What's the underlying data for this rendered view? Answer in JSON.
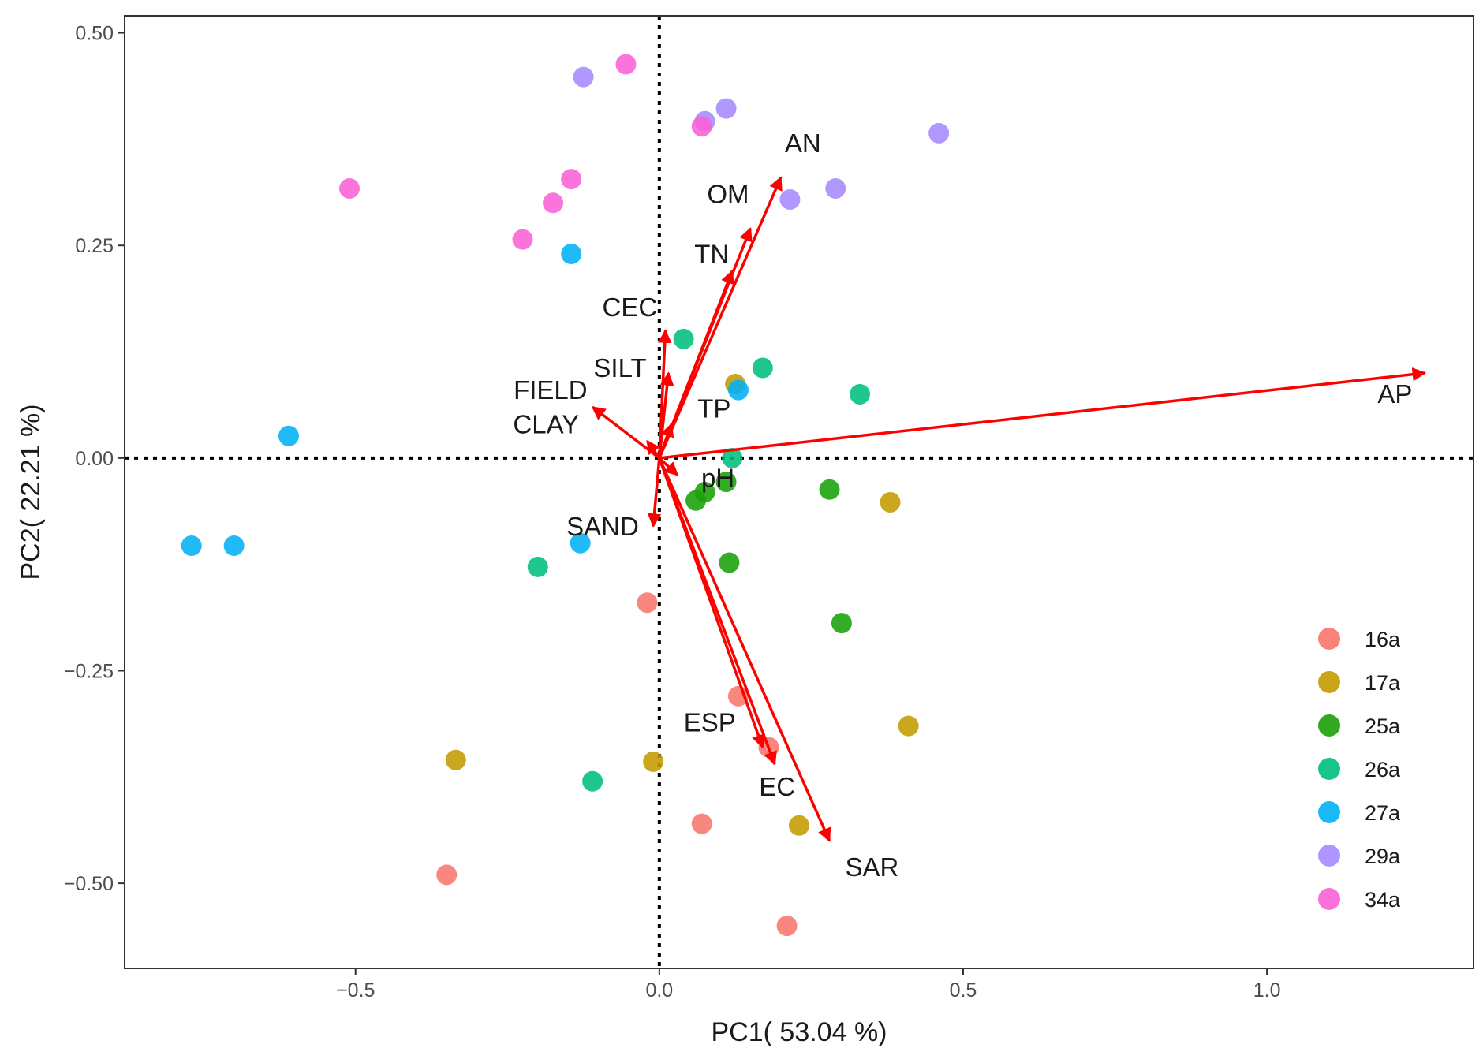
{
  "chart_data": {
    "type": "scatter",
    "subtype": "pca-biplot",
    "xlabel": "PC1( 53.04 %)",
    "ylabel": "PC2( 22.21 %)",
    "xlim": [
      -0.88,
      1.34
    ],
    "ylim": [
      -0.6,
      0.52
    ],
    "x_ticks": [
      {
        "value": -0.5,
        "label": "−0.5"
      },
      {
        "value": 0.0,
        "label": "0.0"
      },
      {
        "value": 0.5,
        "label": "0.5"
      },
      {
        "value": 1.0,
        "label": "1.0"
      }
    ],
    "y_ticks": [
      {
        "value": 0.5,
        "label": "0.50"
      },
      {
        "value": 0.25,
        "label": "0.25"
      },
      {
        "value": 0.0,
        "label": "0.00"
      },
      {
        "value": -0.25,
        "label": "−0.25"
      },
      {
        "value": -0.5,
        "label": "−0.50"
      }
    ],
    "reference_lines": {
      "x": 0,
      "y": 0,
      "style": "dotted"
    },
    "legend_position": "bottom-right",
    "series": [
      {
        "name": "16a",
        "color": "#F8766D",
        "points": [
          [
            -0.02,
            -0.17
          ],
          [
            0.13,
            -0.28
          ],
          [
            0.18,
            -0.34
          ],
          [
            0.07,
            -0.43
          ],
          [
            -0.35,
            -0.49
          ],
          [
            0.21,
            -0.55
          ]
        ]
      },
      {
        "name": "17a",
        "color": "#C49A00",
        "points": [
          [
            0.125,
            0.087
          ],
          [
            0.38,
            -0.052
          ],
          [
            0.41,
            -0.315
          ],
          [
            -0.335,
            -0.355
          ],
          [
            -0.01,
            -0.357
          ],
          [
            0.23,
            -0.432
          ]
        ]
      },
      {
        "name": "25a",
        "color": "#19A008",
        "points": [
          [
            0.06,
            -0.05
          ],
          [
            0.075,
            -0.04
          ],
          [
            0.11,
            -0.028
          ],
          [
            0.28,
            -0.037
          ],
          [
            0.115,
            -0.123
          ],
          [
            0.3,
            -0.194
          ]
        ]
      },
      {
        "name": "26a",
        "color": "#00BF7D",
        "points": [
          [
            0.04,
            0.14
          ],
          [
            0.17,
            0.106
          ],
          [
            0.33,
            0.075
          ],
          [
            0.12,
            0.0
          ],
          [
            -0.2,
            -0.128
          ],
          [
            -0.11,
            -0.38
          ]
        ]
      },
      {
        "name": "27a",
        "color": "#00B0F6",
        "points": [
          [
            -0.145,
            0.24
          ],
          [
            0.13,
            0.08
          ],
          [
            -0.61,
            0.026
          ],
          [
            -0.13,
            -0.1
          ],
          [
            -0.77,
            -0.103
          ],
          [
            -0.7,
            -0.103
          ]
        ]
      },
      {
        "name": "29a",
        "color": "#A58AFF",
        "points": [
          [
            -0.125,
            0.448
          ],
          [
            0.11,
            0.411
          ],
          [
            0.075,
            0.396
          ],
          [
            0.46,
            0.382
          ],
          [
            0.29,
            0.317
          ],
          [
            0.215,
            0.304
          ]
        ]
      },
      {
        "name": "34a",
        "color": "#FB61D7",
        "points": [
          [
            -0.055,
            0.463
          ],
          [
            0.07,
            0.39
          ],
          [
            -0.51,
            0.317
          ],
          [
            -0.145,
            0.328
          ],
          [
            -0.175,
            0.3
          ],
          [
            -0.225,
            0.257
          ]
        ]
      }
    ],
    "loadings": [
      {
        "name": "AN",
        "x": 0.2,
        "y": 0.33
      },
      {
        "name": "OM",
        "x": 0.15,
        "y": 0.27
      },
      {
        "name": "TN",
        "x": 0.12,
        "y": 0.22
      },
      {
        "name": "CEC",
        "x": 0.01,
        "y": 0.15
      },
      {
        "name": "SILT",
        "x": 0.015,
        "y": 0.1
      },
      {
        "name": "FIELD",
        "x": -0.11,
        "y": 0.06
      },
      {
        "name": "CLAY",
        "x": -0.02,
        "y": 0.02
      },
      {
        "name": "TP",
        "x": 0.02,
        "y": 0.04
      },
      {
        "name": "pH",
        "x": 0.03,
        "y": -0.02
      },
      {
        "name": "SAND",
        "x": -0.01,
        "y": -0.08
      },
      {
        "name": "AP",
        "x": 1.26,
        "y": 0.1
      },
      {
        "name": "ESP",
        "x": 0.17,
        "y": -0.34
      },
      {
        "name": "EC",
        "x": 0.19,
        "y": -0.36
      },
      {
        "name": "SAR",
        "x": 0.28,
        "y": -0.45
      }
    ]
  }
}
